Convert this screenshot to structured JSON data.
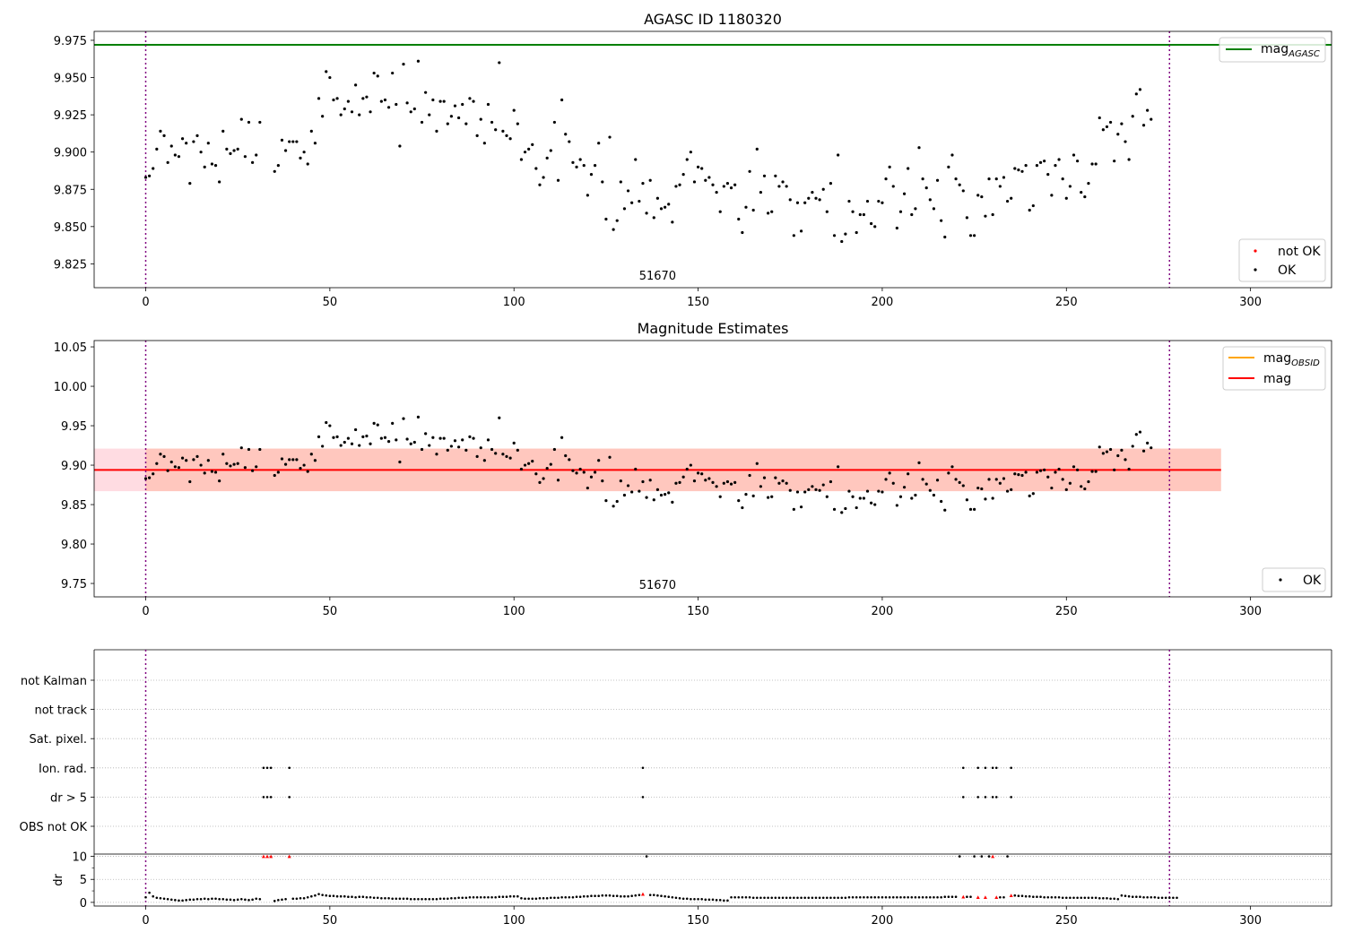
{
  "figure": {
    "panels": [
      {
        "id": "p1",
        "title": "AGASC ID 1180320",
        "annotation": "51670"
      },
      {
        "id": "p2",
        "title": "Magnitude Estimates",
        "annotation": "51670"
      },
      {
        "id": "p3",
        "title": ""
      }
    ]
  },
  "colors": {
    "agasc": "#008000",
    "obsid": "#ffa500",
    "mag": "#ff0000",
    "band_outer": "#ffc0cb",
    "band_inner": "#ffa07a",
    "ok": "#000000",
    "not_ok": "#ff0000",
    "obs_boundary": "#800080"
  },
  "chart_data": [
    {
      "type": "scatter",
      "title": "AGASC ID 1180320",
      "xlim": [
        -14,
        322
      ],
      "ylim": [
        9.809,
        9.981
      ],
      "xticks": [
        0,
        50,
        100,
        150,
        200,
        250,
        300
      ],
      "yticks": [
        "9.825",
        "9.850",
        "9.875",
        "9.900",
        "9.925",
        "9.950",
        "9.975"
      ],
      "annotation": {
        "text": "51670",
        "x": 139
      },
      "obs_boundaries": [
        0,
        278
      ],
      "lines": [
        {
          "name": "mag_AGASC",
          "label_main": "mag",
          "label_sub": "AGASC",
          "y": 9.972
        }
      ],
      "legend_lines": [
        {
          "label_main": "mag",
          "label_sub": "AGASC",
          "color_key": "agasc"
        }
      ],
      "legend_points": [
        {
          "label": "not OK",
          "color_key": "not_ok"
        },
        {
          "label": "OK",
          "color_key": "ok"
        }
      ],
      "series": [
        {
          "name": "OK",
          "y_source": "mag_points"
        }
      ]
    },
    {
      "type": "scatter",
      "title": "Magnitude Estimates",
      "xlim": [
        -14,
        322
      ],
      "ylim": [
        9.733,
        10.058
      ],
      "xticks": [
        0,
        50,
        100,
        150,
        200,
        250,
        300
      ],
      "yticks": [
        "9.75",
        "9.80",
        "9.85",
        "9.90",
        "9.95",
        "10.00",
        "10.05"
      ],
      "annotation": {
        "text": "51670",
        "x": 139
      },
      "obs_boundaries": [
        0,
        278
      ],
      "mag": 9.894,
      "band_outer": [
        9.867,
        9.921
      ],
      "band_inner": [
        9.867,
        9.921
      ],
      "band_xrange": [
        0,
        292
      ],
      "legend_lines": [
        {
          "label_main": "mag",
          "label_sub": "OBSID",
          "color_key": "obsid"
        },
        {
          "label_main": "mag",
          "label_sub": "",
          "color_key": "mag"
        }
      ],
      "legend_points": [
        {
          "label": "OK",
          "color_key": "ok"
        }
      ],
      "series": [
        {
          "name": "OK",
          "y_source": "mag_points"
        }
      ]
    },
    {
      "type": "scatter",
      "xlim": [
        -14,
        322
      ],
      "xticks": [
        0,
        50,
        100,
        150,
        200,
        250,
        300
      ],
      "obs_boundaries": [
        0,
        278
      ],
      "flag_categories": [
        "not Kalman",
        "not track",
        "Sat. pixel.",
        "Ion. rad.",
        "dr > 5",
        "OBS not OK"
      ],
      "flag_points": {
        "Ion. rad.": [
          32,
          33,
          34,
          39,
          135,
          222,
          226,
          228,
          230,
          231,
          235
        ],
        "dr > 5": [
          32,
          33,
          34,
          39,
          135,
          222,
          226,
          228,
          230,
          231,
          235
        ]
      },
      "dr_axis": {
        "ylim": [
          -0.8,
          10.5
        ],
        "yticks": [
          "0",
          "5",
          "10"
        ],
        "minor_yticks": [
          2.5,
          7.5
        ],
        "ylabel": "dr"
      },
      "dr_values": [
        1.1,
        2.1,
        1.3,
        1.0,
        0.9,
        0.8,
        0.7,
        0.6,
        0.5,
        0.4,
        0.4,
        0.5,
        0.6,
        0.6,
        0.7,
        0.7,
        0.8,
        0.7,
        0.8,
        0.8,
        0.7,
        0.7,
        0.6,
        0.6,
        0.5,
        0.6,
        0.7,
        0.6,
        0.5,
        0.6,
        0.8,
        0.7,
        10.0,
        10.0,
        10.0,
        0.3,
        0.5,
        0.6,
        0.7,
        10.0,
        0.8,
        0.8,
        0.9,
        0.9,
        1.1,
        1.3,
        1.5,
        1.8,
        1.6,
        1.5,
        1.4,
        1.4,
        1.3,
        1.3,
        1.3,
        1.2,
        1.2,
        1.1,
        1.2,
        1.2,
        1.1,
        1.1,
        1.0,
        1.0,
        0.9,
        0.9,
        0.9,
        0.8,
        0.8,
        0.8,
        0.8,
        0.8,
        0.7,
        0.7,
        0.7,
        0.7,
        0.7,
        0.7,
        0.7,
        0.7,
        0.8,
        0.8,
        0.8,
        0.9,
        0.9,
        1.0,
        1.0,
        1.0,
        1.1,
        1.1,
        1.1,
        1.1,
        1.1,
        1.1,
        1.1,
        1.1,
        1.2,
        1.2,
        1.2,
        1.3,
        1.3,
        1.3,
        0.9,
        0.8,
        0.8,
        0.8,
        0.8,
        0.9,
        0.9,
        0.9,
        1.0,
        1.0,
        1.0,
        1.1,
        1.1,
        1.1,
        1.1,
        1.2,
        1.2,
        1.3,
        1.3,
        1.4,
        1.4,
        1.4,
        1.5,
        1.5,
        1.5,
        1.4,
        1.4,
        1.3,
        1.3,
        1.3,
        1.4,
        1.5,
        1.6,
        1.8,
        10.0,
        1.6,
        1.6,
        1.5,
        1.4,
        1.3,
        1.2,
        1.1,
        1.0,
        0.9,
        0.8,
        0.8,
        0.7,
        0.7,
        0.7,
        0.7,
        0.6,
        0.6,
        0.6,
        0.5,
        0.5,
        0.4,
        0.4,
        1.1,
        1.1,
        1.1,
        1.1,
        1.1,
        1.1,
        1.0,
        1.0,
        1.0,
        1.0,
        1.0,
        1.0,
        1.0,
        1.0,
        1.0,
        1.0,
        1.0,
        1.0,
        1.0,
        1.0,
        1.0,
        1.0,
        1.0,
        1.0,
        1.0,
        1.0,
        1.0,
        1.0,
        1.0,
        1.0,
        1.0,
        1.0,
        1.1,
        1.1,
        1.1,
        1.1,
        1.1,
        1.1,
        1.1,
        1.1,
        1.1,
        1.1,
        1.1,
        1.1,
        1.1,
        1.1,
        1.1,
        1.1,
        1.1,
        1.1,
        1.1,
        1.1,
        1.1,
        1.1,
        1.1,
        1.1,
        1.1,
        1.1,
        1.2,
        1.2,
        1.2,
        1.2,
        10.0,
        1.2,
        1.2,
        1.2,
        10.0,
        1.1,
        10.0,
        1.1,
        10.0,
        10.0,
        1.1,
        1.1,
        1.1,
        10.0,
        1.5,
        1.5,
        1.4,
        1.4,
        1.3,
        1.3,
        1.2,
        1.2,
        1.2,
        1.1,
        1.1,
        1.1,
        1.1,
        1.1,
        1.0,
        1.0,
        1.0,
        1.0,
        1.0,
        1.0,
        1.0,
        1.0,
        1.0,
        1.0,
        0.9,
        0.9,
        0.9,
        0.8,
        0.8,
        0.7,
        1.5,
        1.4,
        1.3,
        1.2,
        1.2,
        1.2,
        1.1,
        1.1,
        1.1,
        1.1,
        1.0,
        1.0,
        1.0,
        1.0,
        1.0,
        1.0
      ],
      "dr_flagged_x": [
        32,
        33,
        34,
        39,
        135,
        222,
        226,
        228,
        230,
        231,
        235
      ]
    }
  ],
  "mag_points": [
    9.883,
    9.884,
    9.889,
    9.902,
    9.914,
    9.911,
    9.893,
    9.904,
    9.898,
    9.897,
    9.909,
    9.906,
    9.879,
    9.907,
    9.911,
    9.9,
    9.89,
    9.906,
    9.892,
    9.891,
    9.88,
    9.914,
    9.902,
    9.899,
    9.901,
    9.902,
    9.922,
    9.897,
    9.92,
    9.893,
    9.898,
    9.92,
    null,
    null,
    null,
    9.887,
    9.891,
    9.908,
    9.901,
    9.907,
    9.907,
    9.907,
    9.896,
    9.9,
    9.892,
    9.914,
    9.906,
    9.936,
    9.924,
    9.954,
    9.95,
    9.935,
    9.936,
    9.925,
    9.929,
    9.934,
    9.927,
    9.945,
    9.925,
    9.936,
    9.937,
    9.927,
    9.953,
    9.951,
    9.934,
    9.935,
    9.93,
    9.953,
    9.932,
    9.904,
    9.959,
    9.933,
    9.927,
    9.929,
    9.961,
    9.92,
    9.94,
    9.925,
    9.935,
    9.914,
    9.934,
    9.934,
    9.919,
    9.924,
    9.931,
    9.923,
    9.932,
    9.919,
    9.936,
    9.934,
    9.911,
    9.922,
    9.906,
    9.932,
    9.92,
    9.915,
    9.96,
    9.914,
    9.911,
    9.909,
    9.928,
    9.919,
    9.895,
    9.9,
    9.902,
    9.905,
    9.889,
    9.878,
    9.883,
    9.896,
    9.901,
    9.92,
    9.881,
    9.935,
    9.912,
    9.907,
    9.893,
    9.89,
    9.895,
    9.891,
    9.871,
    9.885,
    9.891,
    9.906,
    9.88,
    9.855,
    9.91,
    9.848,
    9.854,
    9.88,
    9.862,
    9.874,
    9.866,
    9.895,
    9.867,
    9.879,
    9.859,
    9.881,
    9.856,
    9.869,
    9.862,
    9.863,
    9.865,
    9.853,
    9.877,
    9.878,
    9.885,
    9.895,
    9.9,
    9.88,
    9.89,
    9.889,
    9.881,
    9.883,
    9.878,
    9.873,
    9.86,
    9.877,
    9.879,
    9.876,
    9.878,
    9.855,
    9.846,
    9.863,
    9.887,
    9.861,
    9.902,
    9.873,
    9.884,
    9.859,
    9.86,
    9.884,
    9.877,
    9.88,
    9.877,
    9.868,
    9.844,
    9.866,
    9.847,
    9.866,
    9.869,
    9.873,
    9.869,
    9.868,
    9.875,
    9.86,
    9.879,
    9.844,
    9.898,
    9.84,
    9.845,
    9.867,
    9.86,
    9.846,
    9.858,
    9.858,
    9.867,
    9.852,
    9.85,
    9.867,
    9.866,
    9.882,
    9.89,
    9.877,
    9.849,
    9.86,
    9.872,
    9.889,
    9.858,
    9.862,
    9.903,
    9.882,
    9.876,
    9.868,
    9.862,
    9.881,
    9.854,
    9.843,
    9.89,
    9.898,
    9.882,
    9.878,
    9.874,
    9.856,
    9.844,
    9.844,
    9.871,
    9.87,
    9.857,
    9.882,
    9.858,
    9.882,
    9.877,
    9.883,
    9.867,
    9.869,
    9.889,
    9.888,
    9.887,
    9.891,
    9.861,
    9.864,
    9.891,
    9.893,
    9.894,
    9.885,
    9.871,
    9.891,
    9.895,
    9.882,
    9.869,
    9.877,
    9.898,
    9.894,
    9.873,
    9.87,
    9.879,
    9.892,
    9.892,
    9.923,
    9.915,
    9.917,
    9.92,
    9.894,
    9.912,
    9.919,
    9.907,
    9.895,
    9.924,
    9.939,
    9.942,
    9.918,
    9.928,
    9.922
  ]
}
